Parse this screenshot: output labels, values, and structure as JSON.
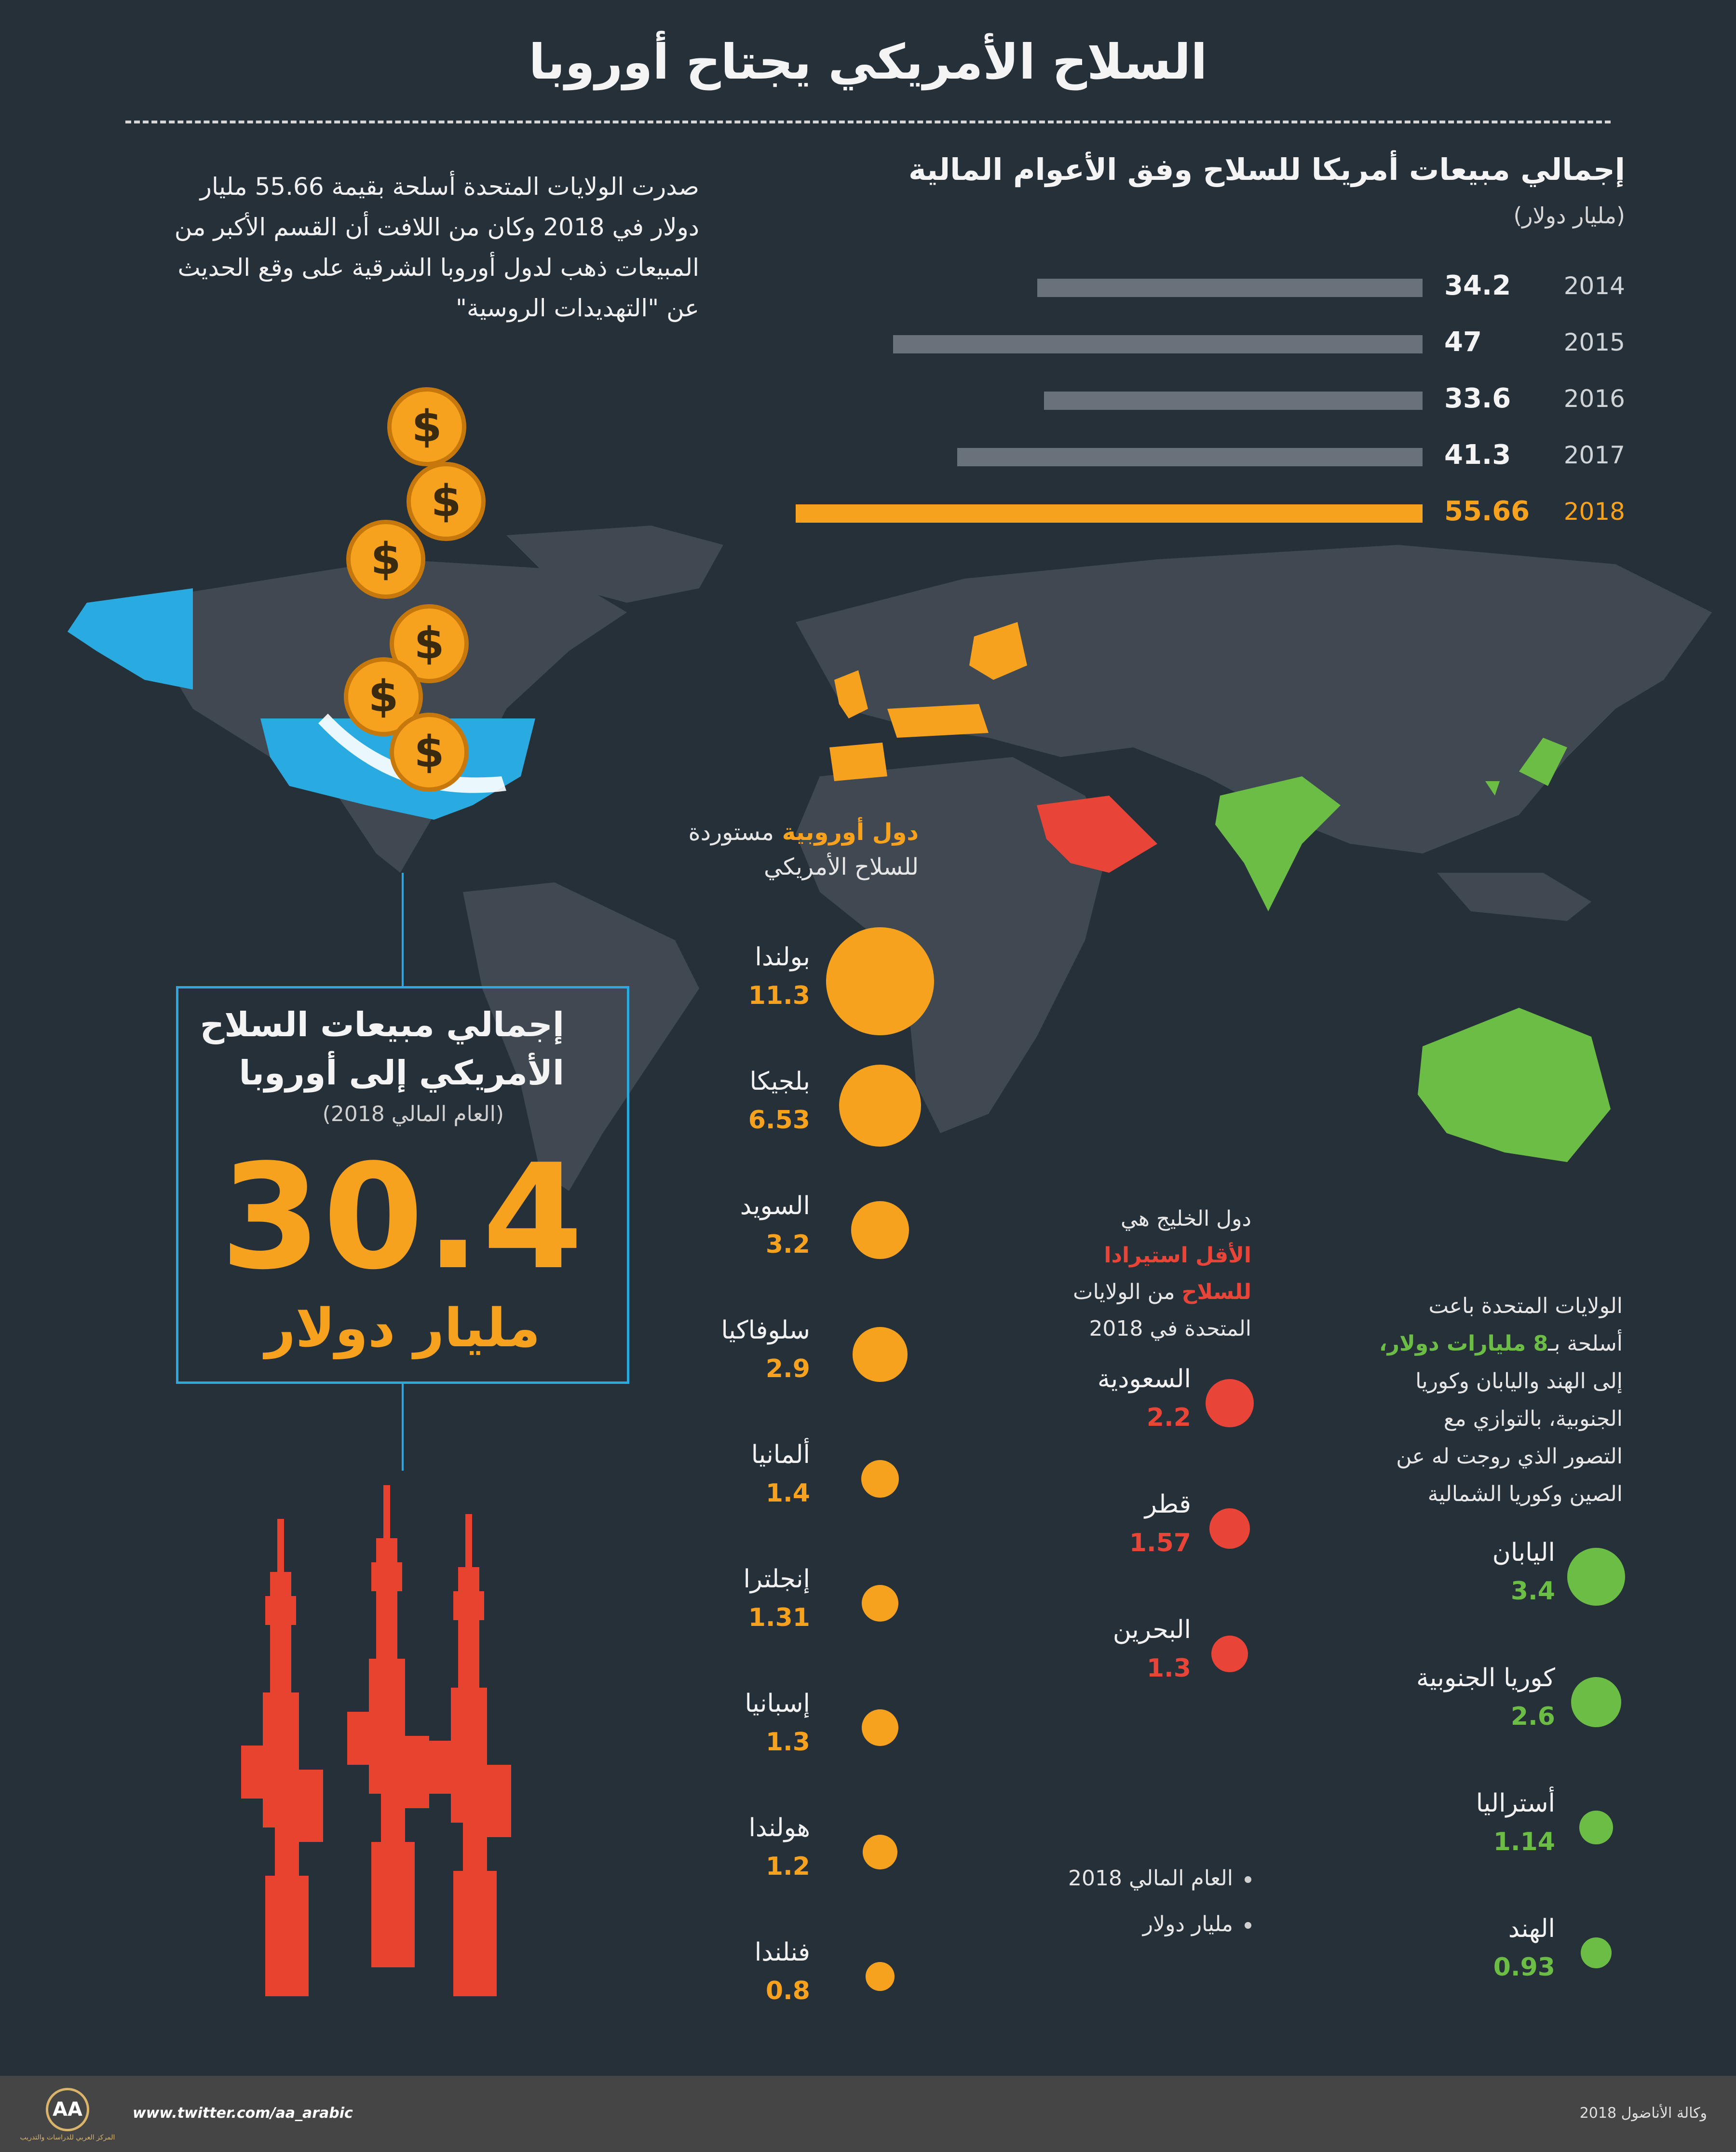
{
  "title": "السلاح الأمريكي يجتاح أوروبا",
  "intro": "صدرت الولايات المتحدة أسلحة بقيمة 55.66 مليار دولار في 2018 وكان من اللافت أن القسم الأكبر من المبيعات ذهب لدول أوروبا الشرقية على وقع الحديث عن \"التهديدات الروسية\"",
  "bars": {
    "title": "إجمالي مبيعات أمريكا للسلاح وفق الأعوام المالية",
    "unit": "(مليار دولار)",
    "items": [
      {
        "year": "2014",
        "value": "34.2",
        "amount": 34.2
      },
      {
        "year": "2015",
        "value": "47",
        "amount": 47
      },
      {
        "year": "2016",
        "value": "33.6",
        "amount": 33.6
      },
      {
        "year": "2017",
        "value": "41.3",
        "amount": 41.3
      },
      {
        "year": "2018",
        "value": "55.66",
        "amount": 55.66
      }
    ],
    "colors": {
      "default": "#69727b",
      "highlight": "#f6a21e"
    }
  },
  "europe": {
    "heading_highlight": "دول أوروبية",
    "heading_rest": "مستوردة",
    "heading_line2": "للسلاح الأمريكي",
    "items": [
      {
        "name": "بولندا",
        "value": "11.3",
        "amount": 11.3
      },
      {
        "name": "بلجيكا",
        "value": "6.53",
        "amount": 6.53
      },
      {
        "name": "السويد",
        "value": "3.2",
        "amount": 3.2
      },
      {
        "name": "سلوفاكيا",
        "value": "2.9",
        "amount": 2.9
      },
      {
        "name": "ألمانيا",
        "value": "1.4",
        "amount": 1.4
      },
      {
        "name": "إنجلترا",
        "value": "1.31",
        "amount": 1.31
      },
      {
        "name": "إسبانيا",
        "value": "1.3",
        "amount": 1.3
      },
      {
        "name": "هولندا",
        "value": "1.2",
        "amount": 1.2
      },
      {
        "name": "فنلندا",
        "value": "0.8",
        "amount": 0.8
      }
    ]
  },
  "gulf": {
    "line1": "دول الخليج هي",
    "line2_highlight": "الأقل استيرادا",
    "line3_highlight": "للسلاح",
    "line3_rest": "من الولايات",
    "line4": "المتحدة في 2018",
    "items": [
      {
        "name": "السعودية",
        "value": "2.2",
        "amount": 2.2
      },
      {
        "name": "قطر",
        "value": "1.57",
        "amount": 1.57
      },
      {
        "name": "البحرين",
        "value": "1.3",
        "amount": 1.3
      }
    ]
  },
  "asia": {
    "line1": "الولايات المتحدة باعت",
    "line2_start": "أسلحة بـ",
    "line2_highlight": "8 مليارات دولار،",
    "line3": "إلى الهند واليابان وكوريا",
    "line4": "الجنوبية، بالتوازي مع",
    "line5": "التصور الذي روجت له عن",
    "line6": "الصين وكوريا الشمالية",
    "items": [
      {
        "name": "اليابان",
        "value": "3.4",
        "amount": 3.4
      },
      {
        "name": "كوريا الجنوبية",
        "value": "2.6",
        "amount": 2.6
      },
      {
        "name": "أستراليا",
        "value": "1.14",
        "amount": 1.14
      },
      {
        "name": "الهند",
        "value": "0.93",
        "amount": 0.93
      }
    ]
  },
  "legend": {
    "item1": "العام المالي 2018",
    "item2": "مليار دولار"
  },
  "box": {
    "title_line1": "إجمالي مبيعات السلاح",
    "title_line2": "الأمريكي إلى أوروبا",
    "subtitle": "(العام المالي 2018)",
    "number": "30.4",
    "unit": "مليار دولار"
  },
  "footer": {
    "url": "www.twitter.com/aa_arabic",
    "credit": "وكالة الأناضول 2018",
    "logo": "AA",
    "logo_caption": "المركز العربي للدراسات والتدريب"
  },
  "colors": {
    "background": "#253039",
    "europe": "#f6a21e",
    "gulf": "#e84437",
    "asia": "#6cbd45",
    "usa": "#2ba9df",
    "guns": "#e8432f"
  },
  "icons": [
    "dollar-coin-icon",
    "rifle-icon",
    "world-map"
  ]
}
